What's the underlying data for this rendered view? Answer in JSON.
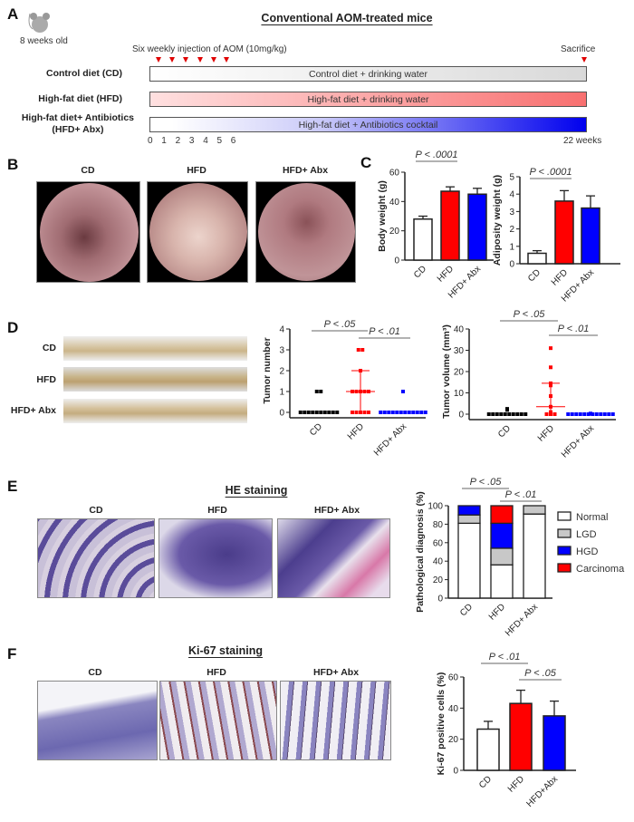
{
  "panels": {
    "A": {
      "letter": "A",
      "title": "Conventional AOM-treated mice",
      "age": "8 weeks old",
      "injection_label": "Six weekly injection of AOM (10mg/kg)",
      "sacrifice_label": "Sacrifice",
      "rows": [
        {
          "label": "Control diet (CD)",
          "bar": "Control diet + drinking water",
          "color": "#d9d9d9"
        },
        {
          "label": "High-fat diet (HFD)",
          "bar": "High-fat diet + drinking water",
          "color": "#f87070"
        },
        {
          "label": "High-fat diet+ Antibiotics",
          "label2": "(HFD+ Abx)",
          "bar": "High-fat diet + Antibiotics cocktail",
          "color": "#0000ee"
        }
      ],
      "ticks": [
        "0",
        "1",
        "2",
        "3",
        "4",
        "5",
        "6"
      ],
      "end_tick": "22 weeks",
      "marker_color": "#e00000"
    },
    "B": {
      "letter": "B",
      "groups": [
        "CD",
        "HFD",
        "HFD+ Abx"
      ]
    },
    "C": {
      "letter": "C"
    },
    "D": {
      "letter": "D",
      "groups": [
        "CD",
        "HFD",
        "HFD+ Abx"
      ]
    },
    "E": {
      "letter": "E",
      "title": "HE staining",
      "groups": [
        "CD",
        "HFD",
        "HFD+ Abx"
      ]
    },
    "F": {
      "letter": "F",
      "title": "Ki-67 staining",
      "groups": [
        "CD",
        "HFD",
        "HFD+ Abx"
      ]
    }
  },
  "colors": {
    "CD": "#ffffff",
    "HFD": "#ff0000",
    "Abx": "#0000ff",
    "LGD": "#c8c8c8",
    "CD_points": "#000000"
  },
  "chart_data": [
    {
      "id": "body",
      "type": "bar",
      "categories": [
        "CD",
        "HFD",
        "HFD+ Abx"
      ],
      "values": [
        28,
        47,
        45
      ],
      "errors": [
        2,
        3,
        4
      ],
      "ylabel": "Body weight (g)",
      "ylim": [
        0,
        60
      ],
      "yticks": [
        0,
        20,
        40,
        60
      ],
      "annotations": [
        {
          "text": "P < .0001",
          "from": 0,
          "to": 1
        }
      ]
    },
    {
      "id": "adipo",
      "type": "bar",
      "categories": [
        "CD",
        "HFD",
        "HFD+ Abx"
      ],
      "values": [
        0.6,
        3.6,
        3.2
      ],
      "errors": [
        0.15,
        0.6,
        0.7
      ],
      "ylabel": "Adiposity weight (g)",
      "ylim": [
        0,
        5
      ],
      "yticks": [
        0,
        1,
        2,
        3,
        4,
        5
      ],
      "annotations": [
        {
          "text": "P < .0001",
          "from": 0,
          "to": 1
        }
      ]
    },
    {
      "id": "tnum",
      "type": "scatter",
      "categories": [
        "CD",
        "HFD",
        "HFD+ Abx"
      ],
      "points": [
        [
          0,
          0,
          0,
          0,
          0,
          0,
          0,
          0,
          0,
          0,
          1,
          1
        ],
        [
          0,
          0,
          0,
          0,
          0,
          1,
          1,
          1,
          1,
          1,
          2,
          3,
          3
        ],
        [
          0,
          0,
          0,
          0,
          0,
          0,
          0,
          0,
          0,
          0,
          0,
          0,
          1
        ]
      ],
      "median": [
        0,
        1,
        0
      ],
      "iqr": [
        [
          0,
          0
        ],
        [
          0,
          2
        ],
        [
          0,
          0
        ]
      ],
      "ylabel": "Tumor number",
      "ylim": [
        0,
        4
      ],
      "yticks": [
        0,
        1,
        2,
        3,
        4
      ],
      "annotations": [
        {
          "text": "P < .05",
          "from": 0,
          "to": 1
        },
        {
          "text": "P < .01",
          "from": 1,
          "to": 2
        }
      ]
    },
    {
      "id": "tvol",
      "type": "scatter",
      "categories": [
        "CD",
        "HFD",
        "HFD+ Abx"
      ],
      "points": [
        [
          0,
          0,
          0,
          0,
          0,
          0,
          0,
          0,
          0,
          0,
          2,
          2.5
        ],
        [
          0,
          0,
          0,
          0.5,
          1,
          3.5,
          8.5,
          13.5,
          14.5,
          22,
          31
        ],
        [
          0,
          0,
          0,
          0,
          0,
          0,
          0,
          0,
          0,
          0,
          0,
          0,
          0.3
        ]
      ],
      "median": [
        0,
        3.5,
        0
      ],
      "iqr": [
        [
          0,
          0
        ],
        [
          0,
          14.5
        ],
        [
          0,
          0
        ]
      ],
      "ylabel": "Tumor volume (mm³)",
      "ylim": [
        0,
        40
      ],
      "yticks": [
        0,
        10,
        20,
        30,
        40
      ],
      "annotations": [
        {
          "text": "P < .05",
          "from": 0,
          "to": 1
        },
        {
          "text": "P < .01",
          "from": 1,
          "to": 2
        }
      ]
    },
    {
      "id": "patho",
      "type": "bar",
      "stacked": true,
      "categories": [
        "CD",
        "HFD",
        "HFD+ Abx"
      ],
      "series": [
        {
          "name": "Normal",
          "values": [
            81,
            36,
            91
          ]
        },
        {
          "name": "LGD",
          "values": [
            9,
            18,
            9
          ]
        },
        {
          "name": "HGD",
          "values": [
            10,
            27,
            0
          ]
        },
        {
          "name": "Carcinoma",
          "values": [
            0,
            19,
            0
          ]
        }
      ],
      "ylabel": "Pathological diagnosis (%)",
      "ylim": [
        0,
        100
      ],
      "yticks": [
        0,
        20,
        40,
        60,
        80,
        100
      ],
      "legend": "right",
      "annotations": [
        {
          "text": "P < .05",
          "from": 0,
          "to": 1
        },
        {
          "text": "P < .01",
          "from": 1,
          "to": 2
        }
      ]
    },
    {
      "id": "ki67",
      "type": "bar",
      "categories": [
        "CD",
        "HFD",
        "HFD+Abx"
      ],
      "values": [
        26.5,
        43,
        35
      ],
      "errors": [
        5,
        8.5,
        9.5
      ],
      "ylabel": "Ki-67 positive cells (%)",
      "ylim": [
        0,
        60
      ],
      "yticks": [
        0,
        20,
        40,
        60
      ],
      "annotations": [
        {
          "text": "P < .01",
          "from": 0,
          "to": 1
        },
        {
          "text": "P < .05",
          "from": 1,
          "to": 2
        }
      ]
    }
  ]
}
